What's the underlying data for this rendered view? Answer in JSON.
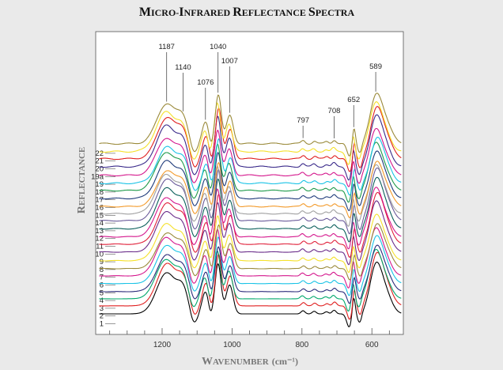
{
  "chart_data": {
    "type": "line",
    "title": "Micro-Infrared Reflectance Spectra",
    "xlabel": "Wavenumber (cm⁻¹)",
    "ylabel": "Reflectance",
    "x_reversed": true,
    "xlim": [
      1390,
      510
    ],
    "xticks": [
      1200,
      1000,
      800,
      600
    ],
    "xtick_labels": [
      "1200",
      "1000",
      "800",
      "600"
    ],
    "grid": false,
    "y_values_shown": false,
    "series": [
      {
        "name": "1",
        "color": "#000000"
      },
      {
        "name": "2",
        "color": "#e02020"
      },
      {
        "name": "3",
        "color": "#00a86b"
      },
      {
        "name": "4",
        "color": "#2a2a7a"
      },
      {
        "name": "5",
        "color": "#19c3e6"
      },
      {
        "name": "6",
        "color": "#d4168c"
      },
      {
        "name": "7",
        "color": "#9a8a3a"
      },
      {
        "name": "8",
        "color": "#f5e12a"
      },
      {
        "name": "9",
        "color": "#6a2c8a"
      },
      {
        "name": "10",
        "color": "#e0203a"
      },
      {
        "name": "11",
        "color": "#d4168c"
      },
      {
        "name": "12",
        "color": "#0a5f5a"
      },
      {
        "name": "13",
        "color": "#6a5a9a"
      },
      {
        "name": "14",
        "color": "#a0a0a0"
      },
      {
        "name": "15",
        "color": "#f39a2a"
      },
      {
        "name": "16",
        "color": "#1e3a7a"
      },
      {
        "name": "17",
        "color": "#1e9a4a"
      },
      {
        "name": "18",
        "color": "#19c3e6"
      },
      {
        "name": "19",
        "color": "#d4168c"
      },
      {
        "name": "19a",
        "color": "#3a2a8a"
      },
      {
        "name": "20",
        "color": "#e02020"
      },
      {
        "name": "21",
        "color": "#f5e12a"
      },
      {
        "name": "22",
        "color": "#9a8a3a"
      }
    ],
    "peak_annotations": [
      {
        "label": "1187",
        "x": 1187
      },
      {
        "label": "1140",
        "x": 1140
      },
      {
        "label": "1076",
        "x": 1076
      },
      {
        "label": "1040",
        "x": 1040
      },
      {
        "label": "1007",
        "x": 1007
      },
      {
        "label": "797",
        "x": 797
      },
      {
        "label": "708",
        "x": 708
      },
      {
        "label": "652",
        "x": 652
      },
      {
        "label": "589",
        "x": 589
      }
    ]
  }
}
